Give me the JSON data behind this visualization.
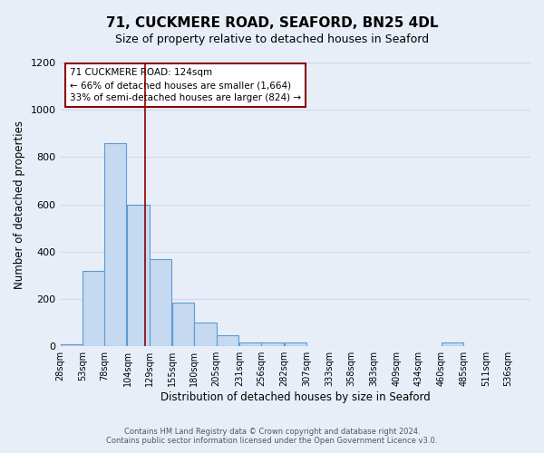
{
  "title": "71, CUCKMERE ROAD, SEAFORD, BN25 4DL",
  "subtitle": "Size of property relative to detached houses in Seaford",
  "xlabel": "Distribution of detached houses by size in Seaford",
  "ylabel": "Number of detached properties",
  "bar_left_edges": [
    28,
    53,
    78,
    104,
    129,
    155,
    180,
    205,
    231,
    256,
    282,
    307,
    333,
    358,
    383,
    409,
    434,
    460,
    485,
    511
  ],
  "bar_heights": [
    10,
    320,
    860,
    600,
    370,
    185,
    100,
    45,
    15,
    15,
    15,
    0,
    0,
    0,
    0,
    0,
    0,
    15,
    0,
    0
  ],
  "bin_width": 25,
  "bar_color": "#c5d9f0",
  "bar_edge_color": "#5b9bd5",
  "vline_x": 124,
  "vline_color": "#8b0000",
  "annotation_line1": "71 CUCKMERE ROAD: 124sqm",
  "annotation_line2": "← 66% of detached houses are smaller (1,664)",
  "annotation_line3": "33% of semi-detached houses are larger (824) →",
  "annotation_box_color": "#ffffff",
  "annotation_box_edge_color": "#8b0000",
  "ylim": [
    0,
    1200
  ],
  "yticks": [
    0,
    200,
    400,
    600,
    800,
    1000,
    1200
  ],
  "tick_labels": [
    "28sqm",
    "53sqm",
    "78sqm",
    "104sqm",
    "129sqm",
    "155sqm",
    "180sqm",
    "205sqm",
    "231sqm",
    "256sqm",
    "282sqm",
    "307sqm",
    "333sqm",
    "358sqm",
    "383sqm",
    "409sqm",
    "434sqm",
    "460sqm",
    "485sqm",
    "511sqm",
    "536sqm"
  ],
  "grid_color": "#d0d8e8",
  "bg_color": "#e8eef8",
  "footer1": "Contains HM Land Registry data © Crown copyright and database right 2024.",
  "footer2": "Contains public sector information licensed under the Open Government Licence v3.0."
}
